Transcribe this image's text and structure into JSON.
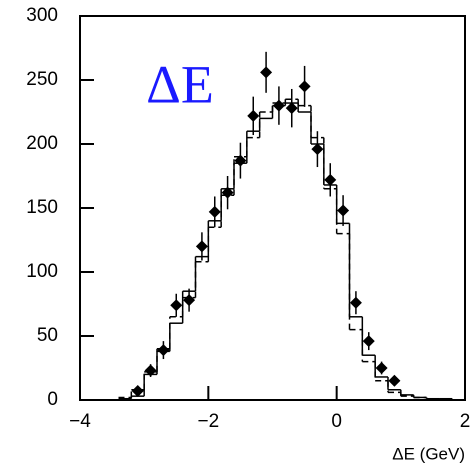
{
  "chart_data": {
    "type": "histogram",
    "annotation": "ΔE",
    "x_label": "ΔE (GeV)",
    "xlim": [
      -4,
      2
    ],
    "ylim": [
      0,
      300
    ],
    "xticks": [
      {
        "value": -4,
        "label": "−4"
      },
      {
        "value": -2,
        "label": "−2"
      },
      0,
      2
    ],
    "yticks": [
      0,
      50,
      100,
      150,
      200,
      250,
      300
    ],
    "bins": [
      -3.4,
      -3.2,
      -3.0,
      -2.8,
      -2.6,
      -2.4,
      -2.2,
      -2.0,
      -1.8,
      -1.6,
      -1.4,
      -1.2,
      -1.0,
      -0.8,
      -0.6,
      -0.4,
      -0.2,
      0,
      0.2,
      0.4,
      0.6,
      0.8,
      1.0,
      1.2,
      1.4,
      1.6,
      1.8,
      2.0
    ],
    "histograms": [
      {
        "style": "solid",
        "color": "#000000",
        "counts": [
          1,
          3,
          20,
          38,
          60,
          85,
          112,
          140,
          165,
          185,
          210,
          220,
          230,
          232,
          225,
          200,
          168,
          138,
          65,
          35,
          18,
          8,
          4,
          2,
          1,
          1,
          0
        ]
      },
      {
        "style": "dashed",
        "color": "#000000",
        "counts": [
          2,
          8,
          22,
          40,
          65,
          80,
          108,
          135,
          160,
          190,
          205,
          225,
          232,
          235,
          230,
          205,
          165,
          130,
          55,
          30,
          15,
          6,
          3,
          2,
          1,
          0,
          0
        ]
      }
    ],
    "points": {
      "color": "#000000",
      "x": [
        -3.1,
        -2.9,
        -2.7,
        -2.5,
        -2.3,
        -2.1,
        -1.9,
        -1.7,
        -1.5,
        -1.3,
        -1.1,
        -0.9,
        -0.7,
        -0.5,
        -0.3,
        -0.1,
        0.1,
        0.3,
        0.5,
        0.7,
        0.9
      ],
      "values": [
        7,
        23,
        39,
        74,
        78,
        120,
        147,
        162,
        187,
        222,
        256,
        230,
        228,
        245,
        196,
        172,
        148,
        76,
        46,
        25,
        15
      ],
      "errors": [
        3,
        5,
        7,
        9,
        9,
        11,
        12,
        13,
        14,
        15,
        16,
        15,
        15,
        16,
        14,
        13,
        12,
        9,
        7,
        5,
        4
      ]
    }
  }
}
